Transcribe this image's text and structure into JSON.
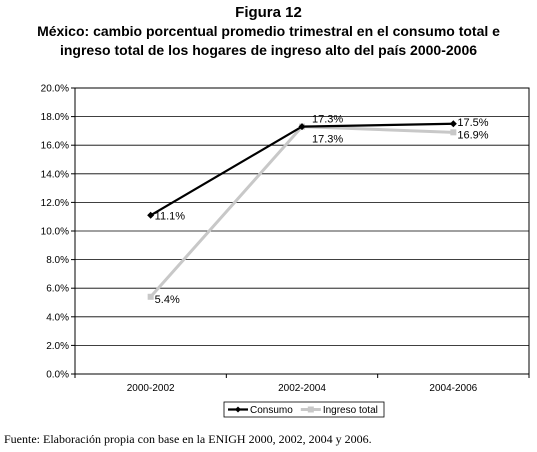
{
  "figure_label": "Figura 12",
  "title_line1": "México: cambio porcentual promedio trimestral en el consumo total e",
  "title_line2": "ingreso total de los hogares de ingreso alto del país 2000-2006",
  "source": "Fuente: Elaboración propia con base en la ENIGH 2000, 2002, 2004 y 2006.",
  "colors": {
    "consumo": "#000000",
    "ingreso": "#c8c8c8",
    "axis": "#000000",
    "grid": "#000000"
  },
  "chart_data": {
    "type": "line",
    "categories": [
      "2000-2002",
      "2002-2004",
      "2004-2006"
    ],
    "ylim": [
      0,
      20
    ],
    "yticks": [
      "0.0%",
      "2.0%",
      "4.0%",
      "6.0%",
      "8.0%",
      "10.0%",
      "12.0%",
      "14.0%",
      "16.0%",
      "18.0%",
      "20.0%"
    ],
    "ytick_values": [
      0,
      2,
      4,
      6,
      8,
      10,
      12,
      14,
      16,
      18,
      20
    ],
    "grid": true,
    "legend_position": "bottom",
    "series": [
      {
        "name": "Consumo",
        "values": [
          11.1,
          17.3,
          17.5
        ],
        "labels": [
          "11.1%",
          "17.3%",
          "17.5%"
        ]
      },
      {
        "name": "Ingreso total",
        "values": [
          5.4,
          17.3,
          16.9
        ],
        "labels": [
          "5.4%",
          "17.3%",
          "16.9%"
        ]
      }
    ]
  }
}
